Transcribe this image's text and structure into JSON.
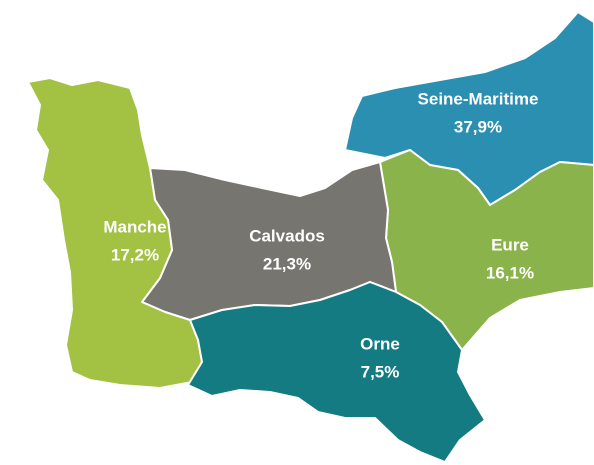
{
  "map": {
    "regions": [
      {
        "name": "Seine-Maritime",
        "value": 37.9,
        "value_label": "37,9%",
        "color": "#2a8fb1"
      },
      {
        "name": "Eure",
        "value": 16.1,
        "value_label": "16,1%",
        "color": "#8bb34b"
      },
      {
        "name": "Calvados",
        "value": 21.3,
        "value_label": "21,3%",
        "color": "#77756f"
      },
      {
        "name": "Manche",
        "value": 17.2,
        "value_label": "17,2%",
        "color": "#a3c142"
      },
      {
        "name": "Orne",
        "value": 7.5,
        "value_label": "7,5%",
        "color": "#137b81"
      }
    ]
  }
}
